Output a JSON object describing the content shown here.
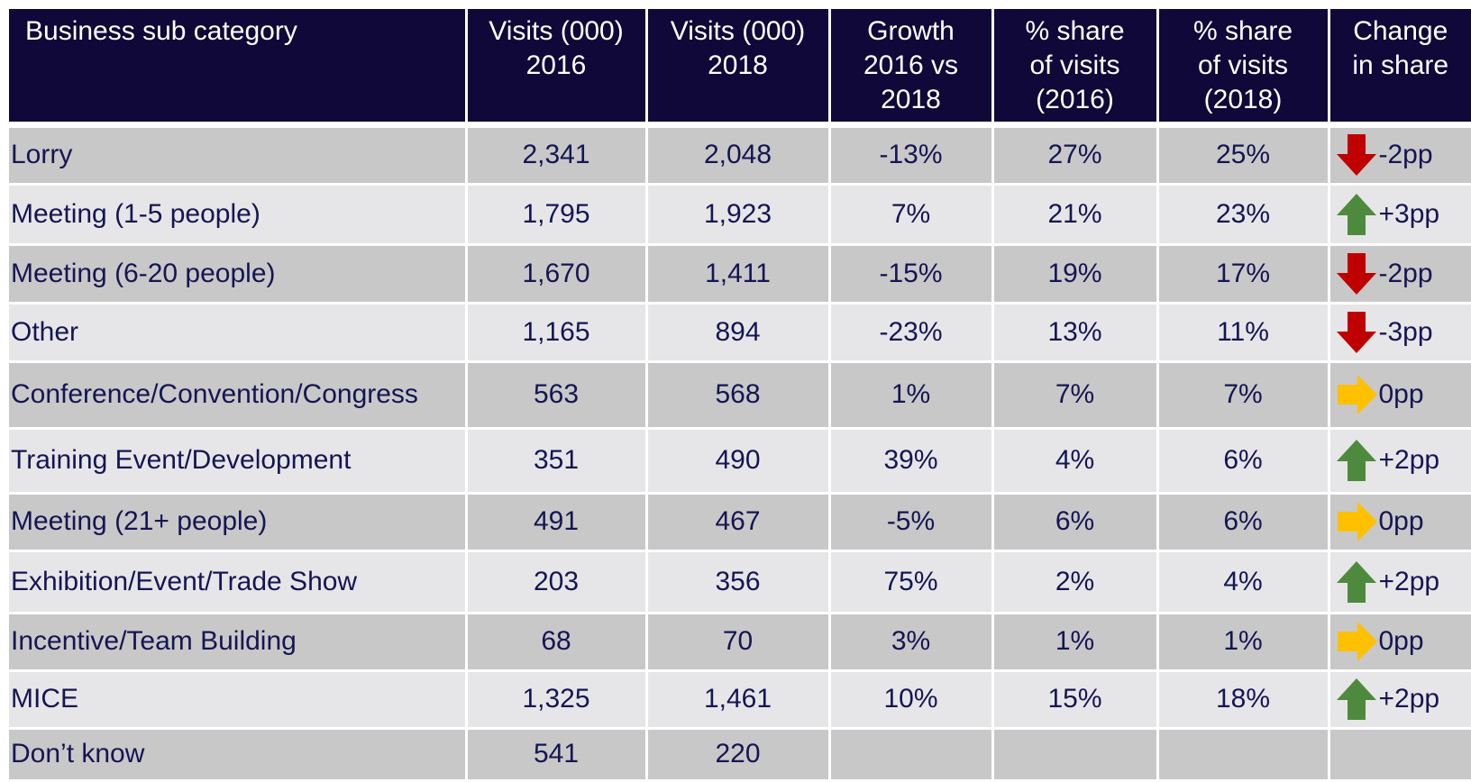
{
  "table": {
    "header": [
      "Business sub category",
      "Visits (000)\n2016",
      "Visits (000)\n2018",
      "Growth\n2016 vs\n2018",
      "% share\nof visits\n(2016)",
      "% share\nof visits\n(2018)",
      "Change\nin share"
    ],
    "rows": [
      [
        "Lorry",
        "2,341",
        "2,048",
        "-13%",
        "27%",
        "25%",
        "-2pp"
      ],
      [
        "Meeting (1-5 people)",
        "1,795",
        "1,923",
        "7%",
        "21%",
        "23%",
        "+3pp"
      ],
      [
        "Meeting (6-20 people)",
        "1,670",
        "1,411",
        "-15%",
        "19%",
        "17%",
        "-2pp"
      ],
      [
        "Other",
        "1,165",
        "894",
        "-23%",
        "13%",
        "11%",
        "-3pp"
      ],
      [
        "Conference/Convention/Congress",
        "563",
        "568",
        "1%",
        "7%",
        "7%",
        "0pp"
      ],
      [
        "Training Event/Development",
        "351",
        "490",
        "39%",
        "4%",
        "6%",
        "+2pp"
      ],
      [
        "Meeting (21+ people)",
        "491",
        "467",
        "-5%",
        "6%",
        "6%",
        "0pp"
      ],
      [
        "Exhibition/Event/Trade Show",
        "203",
        "356",
        "75%",
        "2%",
        "4%",
        "+2pp"
      ],
      [
        "Incentive/Team Building",
        "68",
        "70",
        "3%",
        "1%",
        "1%",
        "0pp"
      ],
      [
        "MICE",
        "1,325",
        "1,461",
        "10%",
        "15%",
        "18%",
        "+2pp"
      ],
      [
        "Don’t know",
        "541",
        "220"
      ]
    ]
  }
}
